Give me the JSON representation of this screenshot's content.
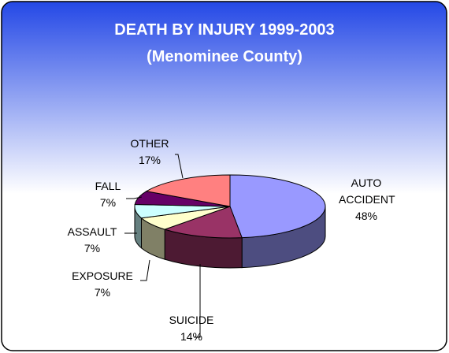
{
  "chart_data": {
    "type": "pie3d",
    "title": "DEATH BY INJURY 1999-2003",
    "subtitle": "(Menominee County)",
    "categories": [
      "AUTO ACCIDENT",
      "SUICIDE",
      "EXPOSURE",
      "ASSAULT",
      "FALL",
      "OTHER"
    ],
    "values": [
      48,
      14,
      7,
      7,
      7,
      17
    ],
    "value_labels": [
      "48%",
      "14%",
      "7%",
      "7%",
      "7%",
      "17%"
    ],
    "colors": [
      "#9999ff",
      "#993366",
      "#ffffcc",
      "#ccffff",
      "#660066",
      "#ff8080"
    ]
  }
}
